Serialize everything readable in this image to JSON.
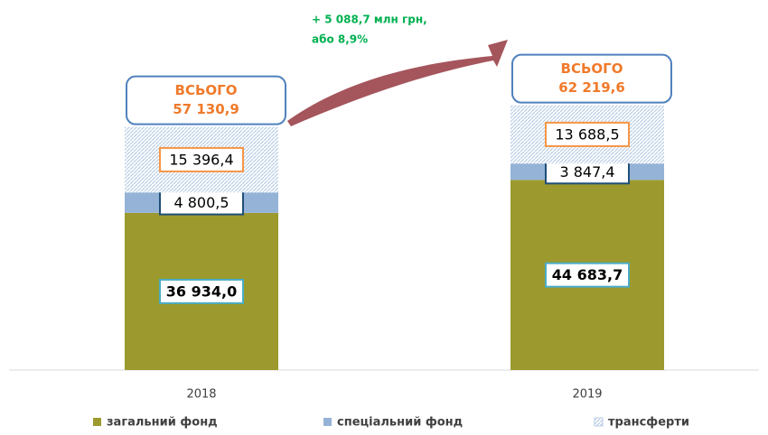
{
  "chart_data": {
    "type": "stacked_bar",
    "categories": [
      "2018",
      "2019"
    ],
    "series": [
      {
        "name": "загальний фонд",
        "color": "#9c9a2e",
        "values": [
          36934.0,
          44683.7
        ],
        "value_labels": [
          "36 934,0",
          "44 683,7"
        ]
      },
      {
        "name": "спеціальний фонд",
        "color": "#95b3d7",
        "values": [
          4800.5,
          3847.4
        ],
        "value_labels": [
          "4 800,5",
          "3 847,4"
        ]
      },
      {
        "name": "трансферти",
        "color": "#b8cce4",
        "values": [
          15396.4,
          13688.5
        ],
        "value_labels": [
          "15 396,4",
          "13 688,5"
        ]
      }
    ],
    "total_title": "ВСЬОГО",
    "totals": [
      57130.9,
      62219.6
    ],
    "total_labels": [
      "57 130,9",
      "62 219,6"
    ],
    "annotation": [
      "+ 5 088,7 млн грн,",
      "або 8,9%"
    ],
    "ylim": [
      0,
      70000
    ]
  }
}
